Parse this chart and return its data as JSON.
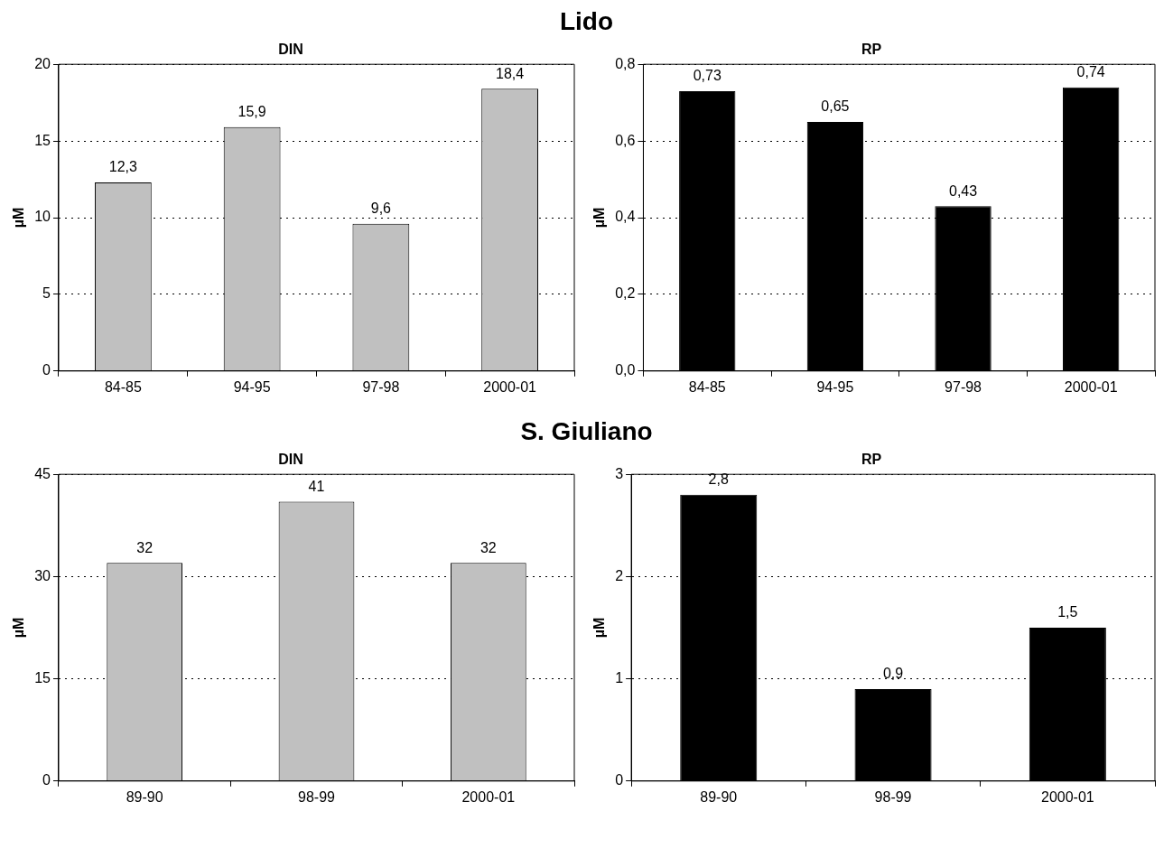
{
  "chart_data": [
    {
      "type": "bar",
      "title": "DIN",
      "ylabel": "µM",
      "annotations": [
        "Lido"
      ],
      "categories": [
        "84-85",
        "94-95",
        "97-98",
        "2000-01"
      ],
      "values": [
        12.3,
        15.9,
        9.6,
        18.4
      ],
      "value_labels": [
        "12,3",
        "15,9",
        "9,6",
        "18,4"
      ],
      "color": "#c0c0c0",
      "ylim": [
        0,
        20
      ],
      "yticks": [
        0,
        5,
        10,
        15,
        20
      ],
      "grid": "y",
      "line_style": "dotted",
      "legend": false
    },
    {
      "type": "bar",
      "title": "RP",
      "ylabel": "µM",
      "categories": [
        "84-85",
        "94-95",
        "97-98",
        "2000-01"
      ],
      "values": [
        0.73,
        0.65,
        0.43,
        0.74
      ],
      "value_labels": [
        "0,73",
        "0,65",
        "0,43",
        "0,74"
      ],
      "color": "#000000",
      "ylim": [
        0,
        0.8
      ],
      "yticks": [
        {
          "value": 0,
          "label": "0,0"
        },
        {
          "value": 0.2,
          "label": "0,2"
        },
        {
          "value": 0.4,
          "label": "0,4"
        },
        {
          "value": 0.6,
          "label": "0,6"
        },
        {
          "value": 0.8,
          "label": "0,8"
        }
      ],
      "grid": "y",
      "line_style": "dotted",
      "legend": false
    },
    {
      "type": "bar",
      "title": "DIN",
      "ylabel": "µM",
      "annotations": [
        "S. Giuliano"
      ],
      "categories": [
        "89-90",
        "98-99",
        "2000-01"
      ],
      "values": [
        32,
        41,
        32
      ],
      "data_labels": true,
      "color": "#c0c0c0",
      "ylim": [
        0,
        45
      ],
      "yticks": [
        0,
        15,
        30,
        45
      ],
      "grid": "y",
      "line_style": "dotted",
      "legend": false
    },
    {
      "type": "bar",
      "title": "RP",
      "ylabel": "µM",
      "categories": [
        "89-90",
        "98-99",
        "2000-01"
      ],
      "values": [
        2.8,
        0.9,
        1.5
      ],
      "value_labels": [
        "2,8",
        "0,9",
        "1,5"
      ],
      "color": "#000000",
      "ylim": [
        0,
        3
      ],
      "yticks": [
        0,
        1,
        2,
        3
      ],
      "grid": "y",
      "line_style": "dotted",
      "legend": false
    }
  ]
}
